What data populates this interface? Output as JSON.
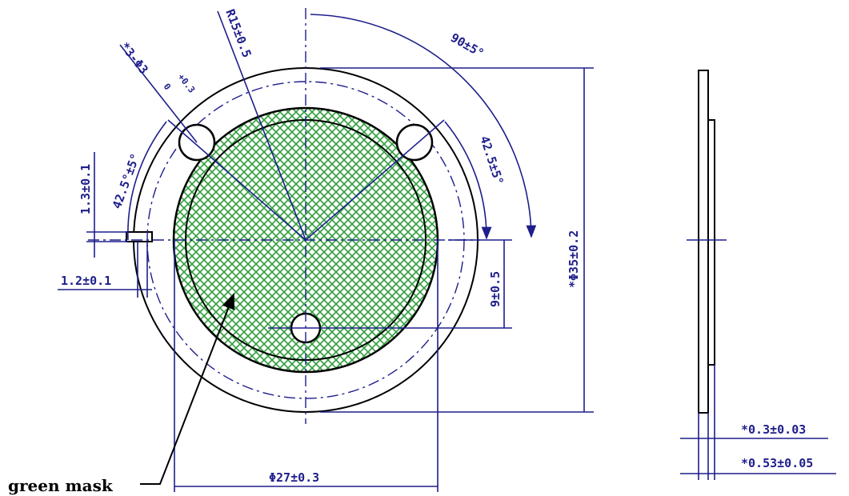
{
  "labels": {
    "radius": "R15±0.5",
    "holes": "*3-Φ3",
    "holes_tol_upper": "+0.3",
    "holes_tol_lower": "0",
    "angle_90": "90±5°",
    "angle_left": "42.5°±5°",
    "angle_right": "42.5±5°",
    "slot_height": "1.3±0.1",
    "slot_width": "1.2±0.1",
    "offset": "9±0.5",
    "outer_diameter": "*Φ35±0.2",
    "inner_diameter": "Φ27±0.3",
    "thickness_thin": "*0.3±0.03",
    "thickness_total": "*0.53±0.05",
    "mask": "green mask"
  },
  "colors": {
    "ink": "#000000",
    "dimension": "#1e1e8c",
    "mask": "#2e9e3a"
  }
}
